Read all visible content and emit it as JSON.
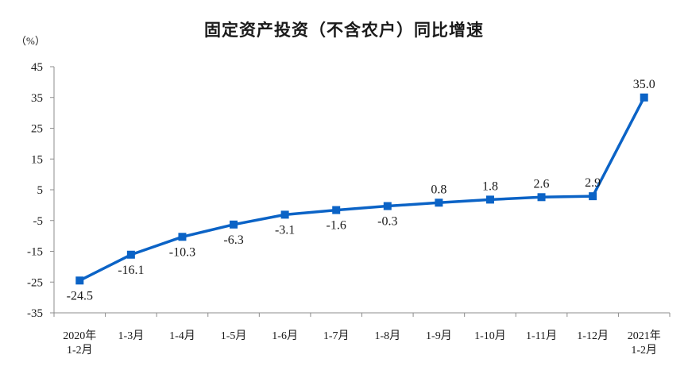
{
  "chart_data": {
    "type": "line",
    "title": "固定资产投资（不含农户）同比增速",
    "ylabel": "（%）",
    "ylim": [
      -35,
      45
    ],
    "yticks": [
      "45",
      "35",
      "25",
      "15",
      "5",
      "-5",
      "-15",
      "-25",
      "-35"
    ],
    "grid": false,
    "categories": [
      [
        "2020年",
        "1-2月"
      ],
      [
        "1-3月"
      ],
      [
        "1-4月"
      ],
      [
        "1-5月"
      ],
      [
        "1-6月"
      ],
      [
        "1-7月"
      ],
      [
        "1-8月"
      ],
      [
        "1-9月"
      ],
      [
        "1-10月"
      ],
      [
        "1-11月"
      ],
      [
        "1-12月"
      ],
      [
        "2021年",
        "1-2月"
      ]
    ],
    "series": [
      {
        "values": [
          -24.5,
          -16.1,
          -10.3,
          -6.3,
          -3.1,
          -1.6,
          -0.3,
          0.8,
          1.8,
          2.6,
          2.9,
          35.0
        ],
        "labels": [
          "-24.5",
          "-16.1",
          "-10.3",
          "-6.3",
          "-3.1",
          "-1.6",
          "-0.3",
          "0.8",
          "1.8",
          "2.6",
          "2.9",
          "35.0"
        ],
        "label_position": [
          "below",
          "below",
          "below",
          "below",
          "below",
          "below",
          "below",
          "above",
          "above",
          "above",
          "above",
          "above"
        ],
        "color": "#0b63c6"
      }
    ]
  }
}
